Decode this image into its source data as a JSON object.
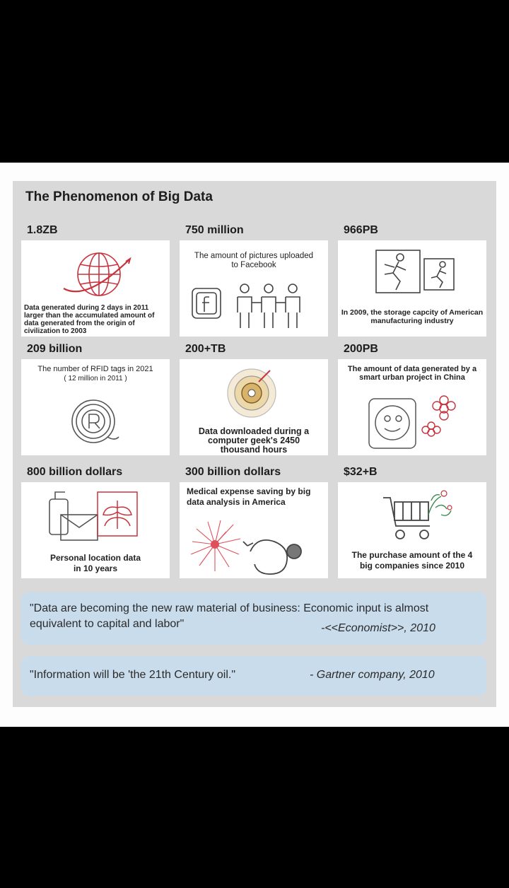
{
  "title": "The Phenomenon of Big Data",
  "cells": [
    {
      "value": "1.8ZB",
      "text": "Data generated during 2 days in 2011 larger than the accumulated amount of data generated from the origin of civilization to 2003",
      "icon": "globe-icon"
    },
    {
      "value": "750 million",
      "text": "The amount of pictures uploaded to Facebook",
      "icon": "facebook-people-icon"
    },
    {
      "value": "966PB",
      "text": "In 2009, the storage capcity of American manufacturing industry",
      "icon": "runner-frames-icon"
    },
    {
      "value": "209 billion",
      "text": "The number of RFID tags in 2021",
      "subtext": "( 12 million in 2011 )",
      "icon": "rfid-tag-icon"
    },
    {
      "value": "200+TB",
      "text": "Data downloaded during a computer geek's 2450 thousand hours",
      "icon": "disc-icon"
    },
    {
      "value": "200PB",
      "text": "The amount of data generated by a smart urban project in China",
      "icon": "smart-city-icon"
    },
    {
      "value": "800 billion dollars",
      "text": "Personal location data in 10 years",
      "icon": "phone-mail-icon"
    },
    {
      "value": "300 billion dollars",
      "text": "Medical expense saving by big data analysis in America",
      "icon": "stethoscope-icon"
    },
    {
      "value": "$32+B",
      "text": "The purchase amount of the 4 big companies since 2010",
      "icon": "shopping-cart-icon"
    }
  ],
  "quotes": [
    {
      "text": "\"Data are becoming the new raw material of business: Economic input is almost equivalent to capital and labor\"",
      "source": "-<<Economist>>, 2010"
    },
    {
      "text": "\"Information will be 'the 21th Century oil.\"",
      "source": "- Gartner company, 2010"
    }
  ],
  "colors": {
    "panel": "#d8d9d8",
    "card": "#ffffff",
    "quote": "#c9dcec",
    "accent_red": "#c8323c"
  }
}
